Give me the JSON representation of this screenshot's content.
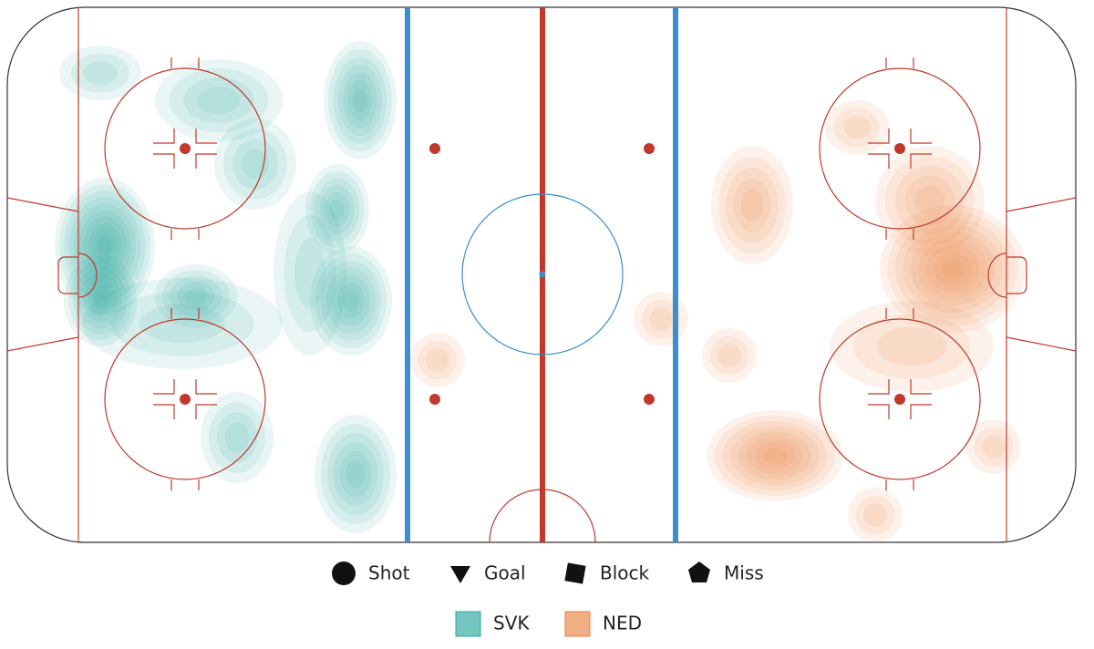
{
  "legend": {
    "markers": [
      {
        "label": "Shot"
      },
      {
        "label": "Goal"
      },
      {
        "label": "Block"
      },
      {
        "label": "Miss"
      }
    ],
    "teams": [
      {
        "label": "SVK",
        "color": "#2aa79e"
      },
      {
        "label": "NED",
        "color": "#e8833f"
      }
    ]
  }
}
